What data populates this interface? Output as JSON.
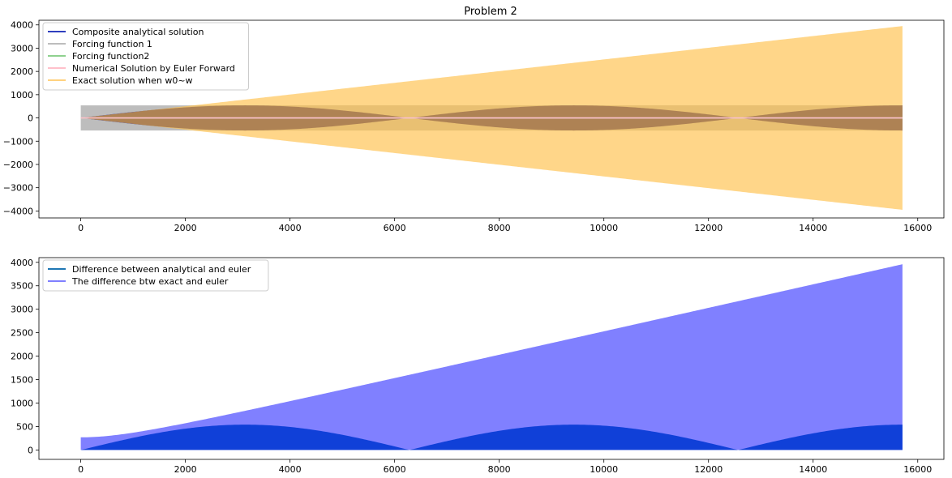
{
  "chart_data": [
    {
      "type": "line",
      "title": "Problem 2",
      "xlabel": "",
      "ylabel": "",
      "xlim": [
        -800,
        16500
      ],
      "ylim": [
        -4300,
        4200
      ],
      "xticks": [
        0,
        2000,
        4000,
        6000,
        8000,
        10000,
        12000,
        14000,
        16000
      ],
      "yticks": [
        -4000,
        -3000,
        -2000,
        -1000,
        0,
        1000,
        2000,
        3000,
        4000
      ],
      "grid": false,
      "legend_position": "upper-left",
      "x_range": [
        0,
        15708
      ],
      "series": [
        {
          "name": "Composite analytical solution",
          "color": "#2f3fbf",
          "kind": "oscillating beat envelope",
          "amplitude_max": 540,
          "envelope_zeros": [
            0,
            6283,
            12566
          ]
        },
        {
          "name": "Forcing function 1",
          "color": "#bdbdbd",
          "kind": "oscillating band",
          "amplitude": 540
        },
        {
          "name": "Forcing function2",
          "color": "#8fd18f",
          "kind": "oscillating band",
          "amplitude": 10
        },
        {
          "name": "Numerical Solution by Euler Forward",
          "color": "#ffc0cb",
          "kind": "near-zero line",
          "amplitude": 10
        },
        {
          "name": "Exact solution when w0~w",
          "color": "#ffd27f",
          "kind": "linearly growing envelope",
          "amplitude_at_start": 0,
          "amplitude_at_end": 3950
        }
      ]
    },
    {
      "type": "line",
      "title": "",
      "xlabel": "",
      "ylabel": "",
      "xlim": [
        -800,
        16500
      ],
      "ylim": [
        -200,
        4100
      ],
      "xticks": [
        0,
        2000,
        4000,
        6000,
        8000,
        10000,
        12000,
        14000,
        16000
      ],
      "yticks": [
        0,
        500,
        1000,
        1500,
        2000,
        2500,
        3000,
        3500,
        4000
      ],
      "grid": false,
      "legend_position": "upper-left",
      "x_range": [
        0,
        15708
      ],
      "series": [
        {
          "name": "Difference between analytical and euler",
          "color": "#1f77b4",
          "kind": "filled oscillation",
          "amplitude_max": 540,
          "envelope_zeros": [
            0,
            6283,
            12566
          ]
        },
        {
          "name": "The difference btw exact and euler",
          "color": "#8080ff",
          "kind": "filled oscillation",
          "amplitude_at_start": 270,
          "amplitude_at_end": 3950
        }
      ]
    }
  ]
}
